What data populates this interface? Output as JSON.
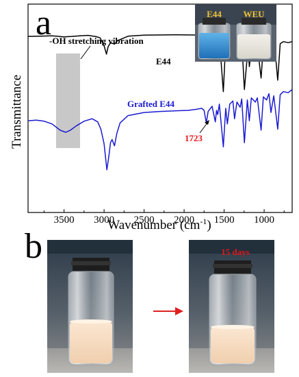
{
  "figure": {
    "panel_a_label": "a",
    "panel_b_label": "b"
  },
  "chart_data": {
    "type": "line",
    "title": "",
    "xlabel": "Wavenumber (cm",
    "xlabel_sup": "-1",
    "xlabel_end": ")",
    "ylabel": "Transmittance",
    "xlim": [
      3950,
      650
    ],
    "x_reversed": true,
    "x_ticks": [
      3500,
      3000,
      2500,
      2000,
      1500,
      1000
    ],
    "x_ticks_labels": [
      "3500",
      "3000",
      "2500",
      "2000",
      "1500",
      "1000"
    ],
    "y_ticks_shown": false,
    "ylim": [
      0,
      100
    ],
    "grid": false,
    "legend": "none",
    "series": [
      {
        "name": "E44",
        "color": "#000000",
        "points": [
          [
            3950,
            84.5
          ],
          [
            3800,
            84.6
          ],
          [
            3650,
            84.8
          ],
          [
            3500,
            84.3
          ],
          [
            3400,
            84.5
          ],
          [
            3300,
            84.8
          ],
          [
            3200,
            85.0
          ],
          [
            3100,
            84.4
          ],
          [
            3050,
            83.8
          ],
          [
            3000,
            80.0
          ],
          [
            2970,
            76.0
          ],
          [
            2950,
            79.5
          ],
          [
            2920,
            81.5
          ],
          [
            2870,
            80.8
          ],
          [
            2830,
            82.5
          ],
          [
            2700,
            84.6
          ],
          [
            2500,
            85.1
          ],
          [
            2300,
            85.2
          ],
          [
            2100,
            85.3
          ],
          [
            1900,
            85.2
          ],
          [
            1700,
            85.0
          ],
          [
            1650,
            84.9
          ],
          [
            1610,
            75.5
          ],
          [
            1590,
            80.5
          ],
          [
            1580,
            78.0
          ],
          [
            1560,
            83.5
          ],
          [
            1510,
            58.0
          ],
          [
            1480,
            81.5
          ],
          [
            1460,
            73.0
          ],
          [
            1430,
            82.0
          ],
          [
            1400,
            83.0
          ],
          [
            1370,
            75.5
          ],
          [
            1340,
            82.5
          ],
          [
            1300,
            79.0
          ],
          [
            1280,
            82.5
          ],
          [
            1247,
            59.0
          ],
          [
            1200,
            80.0
          ],
          [
            1185,
            70.0
          ],
          [
            1150,
            81.0
          ],
          [
            1100,
            79.0
          ],
          [
            1085,
            80.0
          ],
          [
            1038,
            64.5
          ],
          [
            1010,
            80.0
          ],
          [
            970,
            78.5
          ],
          [
            940,
            82.5
          ],
          [
            915,
            75.5
          ],
          [
            870,
            80.5
          ],
          [
            830,
            63.5
          ],
          [
            800,
            81.0
          ],
          [
            760,
            82.0
          ],
          [
            700,
            81.5
          ],
          [
            650,
            82.0
          ]
        ]
      },
      {
        "name": "Grafted E44",
        "color": "#1a1ad0",
        "points": [
          [
            3950,
            44.0
          ],
          [
            3850,
            44.3
          ],
          [
            3750,
            43.8
          ],
          [
            3650,
            42.5
          ],
          [
            3550,
            39.5
          ],
          [
            3480,
            38.5
          ],
          [
            3420,
            39.5
          ],
          [
            3350,
            41.5
          ],
          [
            3250,
            43.8
          ],
          [
            3150,
            45.0
          ],
          [
            3080,
            43.5
          ],
          [
            3040,
            40.0
          ],
          [
            3000,
            33.0
          ],
          [
            2965,
            20.5
          ],
          [
            2940,
            27.0
          ],
          [
            2920,
            33.5
          ],
          [
            2900,
            35.0
          ],
          [
            2870,
            32.0
          ],
          [
            2840,
            38.0
          ],
          [
            2800,
            43.0
          ],
          [
            2700,
            46.5
          ],
          [
            2500,
            48.0
          ],
          [
            2300,
            48.5
          ],
          [
            2100,
            48.8
          ],
          [
            1950,
            49.0
          ],
          [
            1850,
            49.5
          ],
          [
            1780,
            50.0
          ],
          [
            1750,
            49.0
          ],
          [
            1723,
            43.0
          ],
          [
            1700,
            48.5
          ],
          [
            1650,
            51.0
          ],
          [
            1610,
            43.5
          ],
          [
            1595,
            49.0
          ],
          [
            1580,
            47.0
          ],
          [
            1560,
            52.0
          ],
          [
            1510,
            31.5
          ],
          [
            1480,
            50.0
          ],
          [
            1460,
            42.5
          ],
          [
            1430,
            52.0
          ],
          [
            1390,
            53.5
          ],
          [
            1370,
            45.0
          ],
          [
            1340,
            53.0
          ],
          [
            1300,
            50.5
          ],
          [
            1280,
            54.5
          ],
          [
            1247,
            33.5
          ],
          [
            1210,
            54.0
          ],
          [
            1185,
            44.0
          ],
          [
            1160,
            55.0
          ],
          [
            1110,
            53.0
          ],
          [
            1085,
            55.0
          ],
          [
            1038,
            39.5
          ],
          [
            1010,
            55.5
          ],
          [
            970,
            54.0
          ],
          [
            940,
            57.0
          ],
          [
            915,
            48.0
          ],
          [
            880,
            56.0
          ],
          [
            830,
            40.0
          ],
          [
            800,
            56.5
          ],
          [
            760,
            58.0
          ],
          [
            700,
            57.5
          ],
          [
            650,
            59.0
          ]
        ]
      }
    ],
    "series_labels": [
      "E44",
      "Grafted E44"
    ],
    "annotations": {
      "oh_band": "-OH stretching vibration",
      "peak_1723": "1723"
    },
    "shaded_band_cm1": [
      3600,
      3300
    ],
    "vial_labels": [
      "E44",
      "WEU"
    ]
  },
  "photos": {
    "days_label": "15 days"
  },
  "colors": {
    "e44": "#000000",
    "grafted": "#1a1ad0",
    "annotation_red": "#e01818",
    "band_gray": "#c8c8c8",
    "arrow_red": "#e02020"
  }
}
